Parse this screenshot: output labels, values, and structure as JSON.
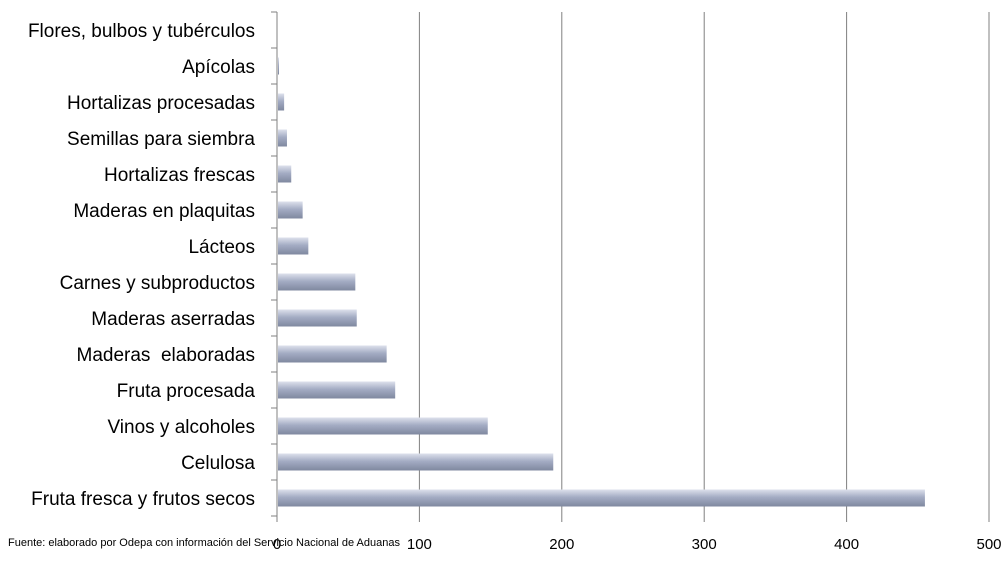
{
  "chart_data": {
    "type": "bar",
    "orientation": "horizontal",
    "categories": [
      "Fruta fresca y frutos secos",
      "Celulosa",
      "Vinos y alcoholes",
      "Fruta procesada",
      "Maderas  elaboradas",
      "Maderas aserradas",
      "Carnes y subproductos",
      "Lácteos",
      "Maderas en plaquitas",
      "Hortalizas frescas",
      "Semillas para siembra",
      "Hortalizas procesadas",
      "Apícolas",
      "Flores, bulbos y tubérculos"
    ],
    "values": [
      455,
      194,
      148,
      83,
      77,
      56,
      55,
      22,
      18,
      10,
      7,
      5,
      1,
      0
    ],
    "xlim": [
      0,
      500
    ],
    "xticks": [
      0,
      100,
      200,
      300,
      400,
      500
    ],
    "grid": "vertical",
    "legend": "none",
    "bar_color": "#a4acc4",
    "bar_highlight_color": "#dde1ec",
    "bar_shadow_color": "#7f889f",
    "source_note": "Fuente:  elaborado por  Odepa con información del Servicio Nacional de Aduanas"
  }
}
